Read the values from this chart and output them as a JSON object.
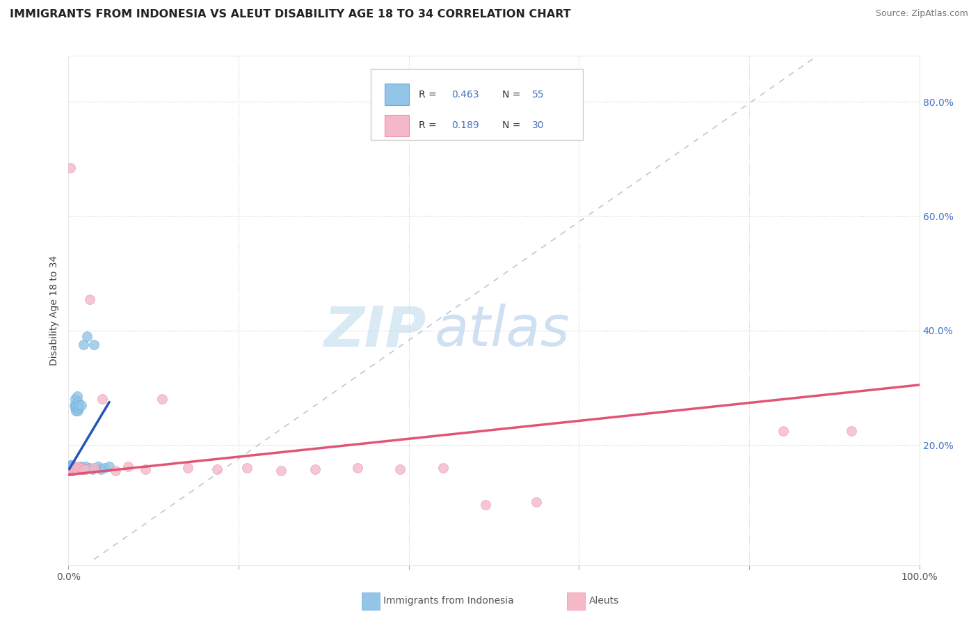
{
  "title": "IMMIGRANTS FROM INDONESIA VS ALEUT DISABILITY AGE 18 TO 34 CORRELATION CHART",
  "source": "Source: ZipAtlas.com",
  "ylabel": "Disability Age 18 to 34",
  "xlim": [
    0,
    1.0
  ],
  "ylim": [
    -0.01,
    0.88
  ],
  "legend_r1": "0.463",
  "legend_n1": "55",
  "legend_r2": "0.189",
  "legend_n2": "30",
  "blue_color": "#92c5e8",
  "pink_color": "#f5b8c8",
  "blue_edge": "#6aaad4",
  "pink_edge": "#e890aa",
  "trend_blue": "#2255bb",
  "trend_pink": "#e05575",
  "ref_line_color": "#aabbd0",
  "grid_color": "#cccccc",
  "watermark_zip": "ZIP",
  "watermark_atlas": "atlas",
  "right_tick_color": "#4472c4",
  "blue_x": [
    0.001,
    0.001,
    0.001,
    0.001,
    0.002,
    0.002,
    0.002,
    0.002,
    0.002,
    0.003,
    0.003,
    0.003,
    0.003,
    0.003,
    0.004,
    0.004,
    0.004,
    0.004,
    0.005,
    0.005,
    0.005,
    0.005,
    0.006,
    0.006,
    0.006,
    0.007,
    0.007,
    0.007,
    0.008,
    0.008,
    0.008,
    0.009,
    0.009,
    0.01,
    0.01,
    0.011,
    0.011,
    0.012,
    0.012,
    0.013,
    0.014,
    0.015,
    0.016,
    0.017,
    0.018,
    0.019,
    0.02,
    0.022,
    0.025,
    0.028,
    0.03,
    0.035,
    0.038,
    0.042,
    0.048
  ],
  "blue_y": [
    0.155,
    0.158,
    0.16,
    0.162,
    0.155,
    0.158,
    0.16,
    0.162,
    0.165,
    0.155,
    0.158,
    0.16,
    0.162,
    0.165,
    0.155,
    0.158,
    0.16,
    0.162,
    0.155,
    0.158,
    0.16,
    0.162,
    0.158,
    0.16,
    0.162,
    0.158,
    0.16,
    0.27,
    0.158,
    0.265,
    0.28,
    0.26,
    0.27,
    0.158,
    0.285,
    0.26,
    0.275,
    0.265,
    0.27,
    0.16,
    0.162,
    0.27,
    0.158,
    0.16,
    0.375,
    0.158,
    0.162,
    0.39,
    0.16,
    0.158,
    0.375,
    0.162,
    0.158,
    0.16,
    0.162
  ],
  "pink_x": [
    0.002,
    0.004,
    0.005,
    0.006,
    0.007,
    0.008,
    0.01,
    0.012,
    0.015,
    0.018,
    0.02,
    0.025,
    0.03,
    0.04,
    0.055,
    0.07,
    0.09,
    0.11,
    0.14,
    0.175,
    0.21,
    0.25,
    0.29,
    0.34,
    0.39,
    0.44,
    0.49,
    0.55,
    0.84,
    0.92
  ],
  "pink_y": [
    0.685,
    0.155,
    0.158,
    0.162,
    0.158,
    0.16,
    0.158,
    0.162,
    0.16,
    0.158,
    0.158,
    0.455,
    0.16,
    0.28,
    0.155,
    0.162,
    0.158,
    0.28,
    0.16,
    0.158,
    0.16,
    0.155,
    0.158,
    0.16,
    0.158,
    0.16,
    0.095,
    0.1,
    0.225,
    0.225
  ],
  "blue_trend_x": [
    0.001,
    0.048
  ],
  "blue_trend_y": [
    0.158,
    0.275
  ],
  "pink_trend_x": [
    0.0,
    1.0
  ],
  "pink_trend_y": [
    0.148,
    0.305
  ]
}
